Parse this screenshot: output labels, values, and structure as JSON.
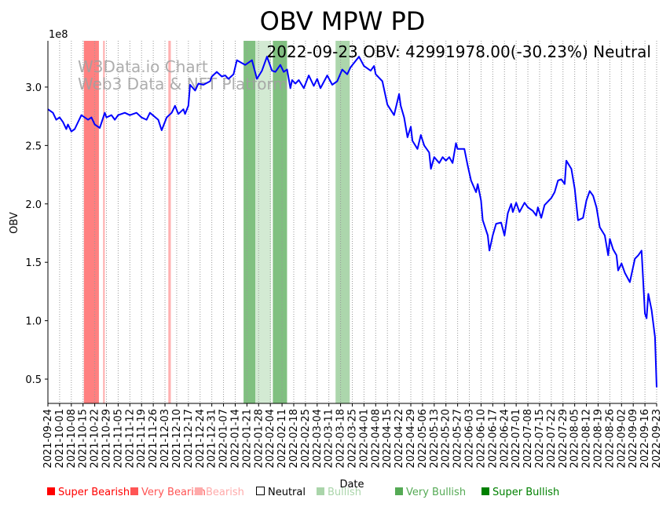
{
  "chart_data": {
    "type": "line",
    "title": "OBV MPW PD",
    "annotation": "2022-09-23 OBV: 42991978.00(-30.23%) Neutral",
    "watermark": [
      "W3Data.io Chart",
      "Web3 Data & NFT Platform"
    ],
    "xlabel": "Date",
    "ylabel": "OBV",
    "y_offset_label": "1e8",
    "x_unit": "days since 2021-09-24",
    "xlim": [
      0,
      364
    ],
    "ylim": [
      0.292,
      3.396
    ],
    "y_scale": 100000000,
    "yticks": [
      0.5,
      1.0,
      1.5,
      2.0,
      2.5,
      3.0
    ],
    "ytick_labels": [
      "0.5",
      "1.0",
      "1.5",
      "2.0",
      "2.5",
      "3.0"
    ],
    "xtick_labels": [
      "2021-09-24",
      "2021-10-01",
      "2021-10-08",
      "2021-10-15",
      "2021-10-22",
      "2021-10-29",
      "2021-11-05",
      "2021-11-12",
      "2021-11-19",
      "2021-11-26",
      "2021-12-03",
      "2021-12-10",
      "2021-12-17",
      "2021-12-24",
      "2021-12-31",
      "2022-01-07",
      "2022-01-14",
      "2022-01-21",
      "2022-01-28",
      "2022-02-04",
      "2022-02-11",
      "2022-02-18",
      "2022-02-25",
      "2022-03-04",
      "2022-03-11",
      "2022-03-18",
      "2022-03-25",
      "2022-04-01",
      "2022-04-08",
      "2022-04-15",
      "2022-04-22",
      "2022-04-29",
      "2022-05-06",
      "2022-05-13",
      "2022-05-20",
      "2022-05-27",
      "2022-06-03",
      "2022-06-10",
      "2022-06-17",
      "2022-06-24",
      "2022-07-01",
      "2022-07-08",
      "2022-07-15",
      "2022-07-22",
      "2022-07-29",
      "2022-08-05",
      "2022-08-12",
      "2022-08-19",
      "2022-08-26",
      "2022-09-02",
      "2022-09-09",
      "2022-09-16",
      "2022-09-23"
    ],
    "grid": "vertical dotted",
    "series": [
      {
        "name": "OBV",
        "color": "#0000ff",
        "x": [
          0,
          3,
          5,
          7,
          9,
          11,
          12,
          14,
          16,
          20,
          24,
          26,
          28,
          31,
          34,
          35,
          38,
          40,
          42,
          46,
          49,
          53,
          56,
          59,
          61,
          66,
          68,
          71,
          74,
          76,
          78,
          81,
          82,
          84,
          85,
          88,
          90,
          93,
          97,
          98,
          101,
          104,
          106,
          108,
          111,
          113,
          118,
          122,
          125,
          128,
          131,
          134,
          136,
          139,
          141,
          143,
          145,
          146,
          148,
          150,
          153,
          156,
          159,
          161,
          163,
          167,
          170,
          173,
          176,
          179,
          181,
          186,
          189,
          193,
          195,
          196,
          200,
          203,
          207,
          210,
          211,
          213,
          215,
          217,
          218,
          221,
          223,
          225,
          228,
          229,
          231,
          234,
          236,
          238,
          240,
          242,
          244,
          245,
          249,
          251,
          253,
          256,
          257,
          259,
          260,
          263,
          264,
          266,
          268,
          271,
          273,
          275,
          277,
          278,
          280,
          282,
          285,
          287,
          290,
          292,
          293,
          295,
          297,
          301,
          303,
          305,
          307,
          309,
          310,
          313,
          315,
          317,
          320,
          322,
          324,
          326,
          328,
          330,
          333,
          335,
          336,
          338,
          340,
          341,
          343,
          345,
          348,
          351,
          353,
          355,
          357,
          358,
          359,
          361,
          363,
          364
        ],
        "y": [
          2.81,
          2.78,
          2.72,
          2.74,
          2.7,
          2.64,
          2.68,
          2.62,
          2.64,
          2.76,
          2.72,
          2.74,
          2.68,
          2.65,
          2.78,
          2.74,
          2.76,
          2.72,
          2.76,
          2.78,
          2.76,
          2.78,
          2.74,
          2.72,
          2.78,
          2.72,
          2.63,
          2.74,
          2.78,
          2.84,
          2.77,
          2.81,
          2.77,
          2.84,
          3.02,
          2.97,
          3.03,
          3.02,
          3.05,
          3.09,
          3.13,
          3.09,
          3.1,
          3.07,
          3.11,
          3.23,
          3.19,
          3.23,
          3.07,
          3.14,
          3.26,
          3.14,
          3.13,
          3.19,
          3.13,
          3.15,
          2.99,
          3.06,
          3.03,
          3.06,
          2.99,
          3.1,
          3.01,
          3.07,
          2.99,
          3.1,
          3.02,
          3.05,
          3.15,
          3.11,
          3.17,
          3.26,
          3.18,
          3.14,
          3.18,
          3.11,
          3.05,
          2.85,
          2.76,
          2.94,
          2.84,
          2.74,
          2.57,
          2.66,
          2.54,
          2.47,
          2.59,
          2.5,
          2.44,
          2.3,
          2.4,
          2.35,
          2.4,
          2.37,
          2.4,
          2.35,
          2.52,
          2.47,
          2.47,
          2.33,
          2.2,
          2.1,
          2.17,
          2.03,
          1.86,
          1.73,
          1.6,
          1.73,
          1.83,
          1.84,
          1.73,
          1.92,
          2.0,
          1.93,
          2.01,
          1.93,
          2.01,
          1.97,
          1.94,
          1.9,
          1.97,
          1.88,
          1.99,
          2.05,
          2.1,
          2.2,
          2.21,
          2.17,
          2.37,
          2.3,
          2.13,
          1.86,
          1.88,
          2.03,
          2.11,
          2.07,
          1.97,
          1.8,
          1.73,
          1.56,
          1.7,
          1.61,
          1.56,
          1.43,
          1.49,
          1.41,
          1.33,
          1.53,
          1.56,
          1.6,
          1.06,
          1.02,
          1.23,
          1.09,
          0.86,
          0.43
        ]
      }
    ],
    "bands": [
      {
        "signal": "Very Bearish",
        "start": 21.5,
        "end": 30.5,
        "color": "#ff8080"
      },
      {
        "signal": "Bearish",
        "start": 33,
        "end": 34,
        "color": "#ffb0b0"
      },
      {
        "signal": "Bearish",
        "start": 72,
        "end": 73.5,
        "color": "#ffb0b0"
      },
      {
        "signal": "Very Bullish",
        "start": 117,
        "end": 124,
        "color": "#80c080"
      },
      {
        "signal": "Bullish",
        "start": 124,
        "end": 133.5,
        "color": "#d3ead3"
      },
      {
        "signal": "Very Bullish",
        "start": 134.5,
        "end": 143,
        "color": "#80c080"
      },
      {
        "signal": "Bullish",
        "start": 172,
        "end": 180.5,
        "color": "#acd6ac"
      }
    ],
    "legend": [
      {
        "label": "Super Bearish",
        "color": "#ff0000"
      },
      {
        "label": "Very Bearish",
        "color": "#ff5555"
      },
      {
        "label": "Bearish",
        "color": "#ffaaaa"
      },
      {
        "label": "Neutral",
        "color": "#000000"
      },
      {
        "label": "Bullish",
        "color": "#aad5aa"
      },
      {
        "label": "Very Bullish",
        "color": "#55aa55"
      },
      {
        "label": "Super Bullish",
        "color": "#008000"
      }
    ]
  }
}
